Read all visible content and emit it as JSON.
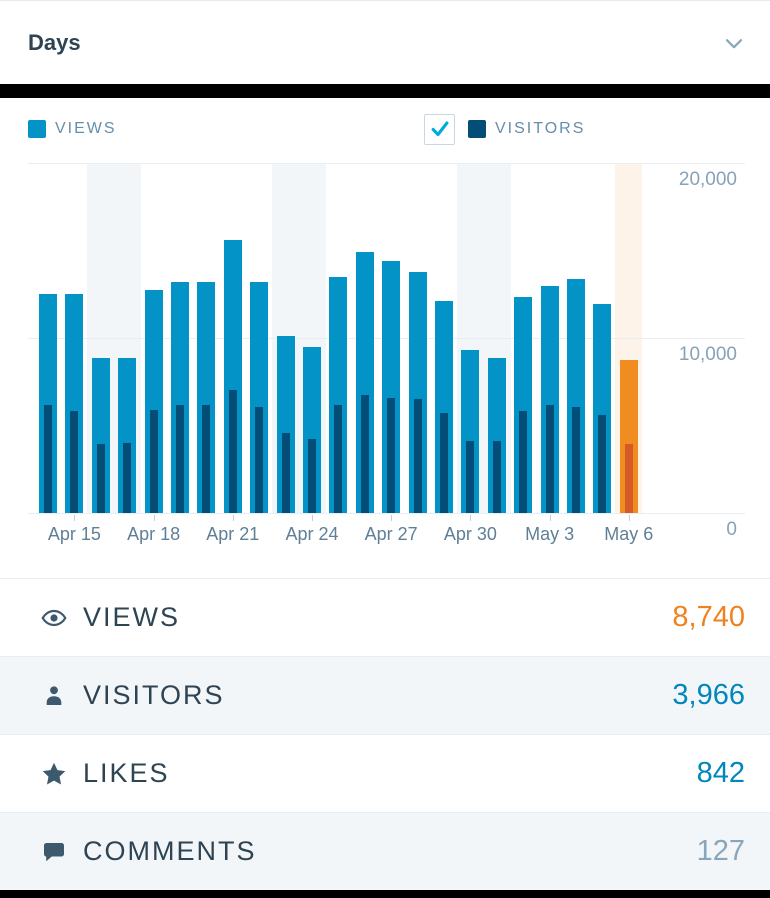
{
  "header": {
    "title": "Days"
  },
  "legend": {
    "views_label": "VIEWS",
    "visitors_label": "VISITORS",
    "visitors_checkbox_checked": true
  },
  "chart_data": {
    "type": "bar",
    "title": "Views and Visitors by day",
    "categories": [
      "Apr 14",
      "Apr 15",
      "Apr 16",
      "Apr 17",
      "Apr 18",
      "Apr 19",
      "Apr 20",
      "Apr 21",
      "Apr 22",
      "Apr 23",
      "Apr 24",
      "Apr 25",
      "Apr 26",
      "Apr 27",
      "Apr 28",
      "Apr 29",
      "Apr 30",
      "May 1",
      "May 2",
      "May 3",
      "May 4",
      "May 5",
      "May 6"
    ],
    "series": [
      {
        "name": "Views",
        "values": [
          12500,
          12500,
          8850,
          8850,
          12750,
          13200,
          13200,
          15600,
          13200,
          10100,
          9500,
          13500,
          14900,
          14400,
          13800,
          12100,
          9300,
          8850,
          12350,
          13000,
          13400,
          11950,
          8740
        ]
      },
      {
        "name": "Visitors",
        "values": [
          6150,
          5850,
          3950,
          3980,
          5900,
          6150,
          6200,
          7050,
          6050,
          4550,
          4250,
          6200,
          6750,
          6600,
          6500,
          5700,
          4100,
          4100,
          5850,
          6150,
          6050,
          5600,
          3966
        ]
      }
    ],
    "ylim": [
      0,
      20000
    ],
    "y_ticks": [
      {
        "value": 20000,
        "label": "20,000"
      },
      {
        "value": 10000,
        "label": "10,000"
      },
      {
        "value": 0,
        "label": "0"
      }
    ],
    "x_tick_indices": [
      1,
      4,
      7,
      10,
      13,
      16,
      19,
      22
    ],
    "x_tick_labels": [
      "Apr 15",
      "Apr 18",
      "Apr 21",
      "Apr 24",
      "Apr 27",
      "Apr 30",
      "May 3",
      "May 6"
    ],
    "weekend_band_indices": [
      2,
      3,
      9,
      10,
      16,
      17
    ],
    "today_index": 22,
    "legend_position": "top",
    "grid": "horizontal"
  },
  "summary": {
    "rows": [
      {
        "label": "VIEWS",
        "value": "8,740"
      },
      {
        "label": "VISITORS",
        "value": "3,966"
      },
      {
        "label": "LIKES",
        "value": "842"
      },
      {
        "label": "COMMENTS",
        "value": "127"
      }
    ]
  },
  "colors": {
    "views": "#0393c7",
    "visitors": "#044d76",
    "today_views": "#f08c20",
    "today_visitors": "#d65a26",
    "weekend_band": "#f3f6f8",
    "today_band": "#fdf3e9",
    "value_views": "#f0821e",
    "value_visitors": "#0087be",
    "value_likes": "#0087be",
    "value_comments": "#87a6bc",
    "checkmark": "#00aadc"
  }
}
